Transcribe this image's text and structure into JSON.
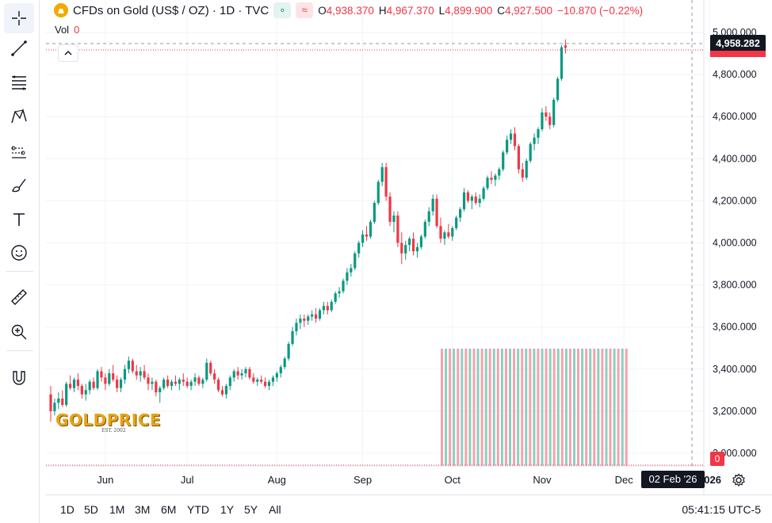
{
  "legend": {
    "title": "CFDs on Gold (US$ / OZ) · 1D · TVC",
    "market_badge": "∘",
    "wave_badge": "≈",
    "open_key": "O",
    "open": "4,938.370",
    "high_key": "H",
    "high": "4,967.370",
    "low_key": "L",
    "low": "4,899.900",
    "close_key": "C",
    "close": "4,927.500",
    "change": "−10.870 (−0.22%)"
  },
  "volume": {
    "label": "Vol",
    "value": "0"
  },
  "price_tag": "4,958.282",
  "vol_tag": "0",
  "date_tag": "02 Feb '26",
  "logo": {
    "brand": "GOLDPRICE",
    "est": "EST. 2002"
  },
  "toolbar": [
    "crosshair-icon",
    "trend-line-icon",
    "fib-icon",
    "pattern-icon",
    "prediction-icon",
    "brush-icon",
    "text-icon",
    "emoji-icon",
    "ruler-icon",
    "zoom-icon",
    "magnet-icon"
  ],
  "ranges": [
    "1D",
    "5D",
    "1M",
    "3M",
    "6M",
    "YTD",
    "1Y",
    "5Y",
    "All"
  ],
  "clock": "05:41:15 UTC-5",
  "colors": {
    "up": "#089981",
    "down": "#f23645",
    "vol_up": "#8fcdc2",
    "vol_down": "#f4a3aa"
  },
  "chart_data": {
    "type": "candlestick",
    "y_ticks": [
      "5,000.000",
      "4,800.000",
      "4,600.000",
      "4,400.000",
      "4,200.000",
      "4,000.000",
      "3,800.000",
      "3,600.000",
      "3,400.000",
      "3,200.000",
      "3,000.000"
    ],
    "y_tick_values": [
      5000,
      4800,
      4600,
      4400,
      4200,
      4000,
      3800,
      3600,
      3400,
      3200,
      3000
    ],
    "ylim": [
      2950,
      5060
    ],
    "x_ticks": [
      "Jun",
      "Jul",
      "Aug",
      "Sep",
      "Oct",
      "Nov",
      "Dec",
      "2026"
    ],
    "x_tick_index": [
      14,
      35,
      58,
      80,
      103,
      126,
      147,
      169
    ],
    "ohlc": [
      [
        3280,
        3320,
        3150,
        3200
      ],
      [
        3200,
        3260,
        3180,
        3240
      ],
      [
        3240,
        3290,
        3210,
        3260
      ],
      [
        3260,
        3300,
        3220,
        3230
      ],
      [
        3230,
        3340,
        3220,
        3330
      ],
      [
        3330,
        3370,
        3300,
        3310
      ],
      [
        3310,
        3360,
        3290,
        3350
      ],
      [
        3350,
        3380,
        3300,
        3320
      ],
      [
        3320,
        3330,
        3260,
        3280
      ],
      [
        3280,
        3330,
        3250,
        3300
      ],
      [
        3300,
        3350,
        3280,
        3340
      ],
      [
        3340,
        3360,
        3300,
        3310
      ],
      [
        3310,
        3400,
        3300,
        3390
      ],
      [
        3390,
        3410,
        3340,
        3360
      ],
      [
        3360,
        3380,
        3300,
        3330
      ],
      [
        3330,
        3400,
        3320,
        3380
      ],
      [
        3380,
        3420,
        3340,
        3350
      ],
      [
        3350,
        3370,
        3290,
        3310
      ],
      [
        3310,
        3360,
        3290,
        3350
      ],
      [
        3350,
        3420,
        3330,
        3400
      ],
      [
        3400,
        3460,
        3380,
        3440
      ],
      [
        3440,
        3450,
        3380,
        3390
      ],
      [
        3390,
        3420,
        3350,
        3370
      ],
      [
        3370,
        3410,
        3340,
        3390
      ],
      [
        3390,
        3420,
        3350,
        3360
      ],
      [
        3360,
        3380,
        3300,
        3330
      ],
      [
        3330,
        3360,
        3300,
        3340
      ],
      [
        3340,
        3350,
        3270,
        3290
      ],
      [
        3290,
        3320,
        3240,
        3310
      ],
      [
        3310,
        3360,
        3300,
        3350
      ],
      [
        3350,
        3370,
        3310,
        3320
      ],
      [
        3320,
        3350,
        3300,
        3340
      ],
      [
        3340,
        3370,
        3320,
        3330
      ],
      [
        3330,
        3360,
        3300,
        3350
      ],
      [
        3350,
        3380,
        3320,
        3340
      ],
      [
        3340,
        3360,
        3310,
        3320
      ],
      [
        3320,
        3350,
        3300,
        3340
      ],
      [
        3340,
        3380,
        3320,
        3360
      ],
      [
        3360,
        3370,
        3320,
        3330
      ],
      [
        3330,
        3360,
        3310,
        3350
      ],
      [
        3350,
        3450,
        3340,
        3430
      ],
      [
        3430,
        3440,
        3370,
        3380
      ],
      [
        3380,
        3400,
        3330,
        3350
      ],
      [
        3350,
        3360,
        3290,
        3300
      ],
      [
        3300,
        3320,
        3270,
        3280
      ],
      [
        3280,
        3330,
        3260,
        3320
      ],
      [
        3320,
        3370,
        3300,
        3360
      ],
      [
        3360,
        3400,
        3340,
        3390
      ],
      [
        3390,
        3410,
        3350,
        3370
      ],
      [
        3370,
        3400,
        3350,
        3380
      ],
      [
        3380,
        3410,
        3360,
        3400
      ],
      [
        3400,
        3410,
        3350,
        3360
      ],
      [
        3360,
        3380,
        3330,
        3340
      ],
      [
        3340,
        3360,
        3320,
        3350
      ],
      [
        3350,
        3370,
        3330,
        3340
      ],
      [
        3340,
        3360,
        3310,
        3320
      ],
      [
        3320,
        3350,
        3300,
        3340
      ],
      [
        3340,
        3370,
        3320,
        3360
      ],
      [
        3360,
        3390,
        3340,
        3380
      ],
      [
        3380,
        3420,
        3360,
        3410
      ],
      [
        3410,
        3460,
        3400,
        3450
      ],
      [
        3450,
        3530,
        3440,
        3520
      ],
      [
        3520,
        3600,
        3510,
        3580
      ],
      [
        3580,
        3640,
        3560,
        3620
      ],
      [
        3620,
        3660,
        3590,
        3640
      ],
      [
        3640,
        3660,
        3600,
        3630
      ],
      [
        3630,
        3660,
        3610,
        3650
      ],
      [
        3650,
        3680,
        3630,
        3660
      ],
      [
        3660,
        3690,
        3620,
        3640
      ],
      [
        3640,
        3690,
        3630,
        3680
      ],
      [
        3680,
        3720,
        3660,
        3700
      ],
      [
        3700,
        3720,
        3660,
        3680
      ],
      [
        3680,
        3730,
        3670,
        3720
      ],
      [
        3720,
        3770,
        3710,
        3760
      ],
      [
        3760,
        3790,
        3740,
        3770
      ],
      [
        3770,
        3830,
        3760,
        3820
      ],
      [
        3820,
        3880,
        3800,
        3860
      ],
      [
        3860,
        3900,
        3840,
        3880
      ],
      [
        3880,
        3960,
        3870,
        3950
      ],
      [
        3950,
        4010,
        3930,
        4000
      ],
      [
        4000,
        4060,
        3980,
        4040
      ],
      [
        4040,
        4080,
        4010,
        4030
      ],
      [
        4030,
        4110,
        4020,
        4100
      ],
      [
        4100,
        4200,
        4090,
        4190
      ],
      [
        4190,
        4300,
        4180,
        4290
      ],
      [
        4290,
        4380,
        4270,
        4360
      ],
      [
        4360,
        4380,
        4200,
        4220
      ],
      [
        4220,
        4240,
        4080,
        4100
      ],
      [
        4100,
        4150,
        4050,
        4130
      ],
      [
        4130,
        4150,
        3980,
        4000
      ],
      [
        4000,
        4050,
        3900,
        3950
      ],
      [
        3950,
        4010,
        3920,
        3990
      ],
      [
        3990,
        4030,
        3960,
        4020
      ],
      [
        4020,
        4050,
        3940,
        3960
      ],
      [
        3960,
        4000,
        3930,
        3980
      ],
      [
        3980,
        4040,
        3970,
        4030
      ],
      [
        4030,
        4110,
        4020,
        4100
      ],
      [
        4100,
        4170,
        4080,
        4150
      ],
      [
        4150,
        4230,
        4130,
        4210
      ],
      [
        4210,
        4230,
        4070,
        4080
      ],
      [
        4080,
        4120,
        4000,
        4020
      ],
      [
        4020,
        4060,
        3990,
        4050
      ],
      [
        4050,
        4090,
        4020,
        4030
      ],
      [
        4030,
        4080,
        4010,
        4070
      ],
      [
        4070,
        4130,
        4060,
        4120
      ],
      [
        4120,
        4170,
        4100,
        4160
      ],
      [
        4160,
        4260,
        4150,
        4240
      ],
      [
        4240,
        4250,
        4190,
        4200
      ],
      [
        4200,
        4230,
        4160,
        4220
      ],
      [
        4220,
        4240,
        4180,
        4190
      ],
      [
        4190,
        4230,
        4170,
        4210
      ],
      [
        4210,
        4270,
        4200,
        4260
      ],
      [
        4260,
        4320,
        4250,
        4310
      ],
      [
        4310,
        4340,
        4280,
        4300
      ],
      [
        4300,
        4330,
        4270,
        4320
      ],
      [
        4320,
        4360,
        4300,
        4350
      ],
      [
        4350,
        4440,
        4340,
        4430
      ],
      [
        4430,
        4510,
        4420,
        4490
      ],
      [
        4490,
        4540,
        4470,
        4520
      ],
      [
        4520,
        4550,
        4440,
        4460
      ],
      [
        4460,
        4470,
        4330,
        4350
      ],
      [
        4350,
        4380,
        4290,
        4310
      ],
      [
        4310,
        4400,
        4300,
        4390
      ],
      [
        4390,
        4480,
        4380,
        4470
      ],
      [
        4470,
        4520,
        4440,
        4500
      ],
      [
        4500,
        4550,
        4470,
        4540
      ],
      [
        4540,
        4640,
        4530,
        4620
      ],
      [
        4620,
        4650,
        4580,
        4600
      ],
      [
        4600,
        4620,
        4540,
        4560
      ],
      [
        4560,
        4690,
        4550,
        4680
      ],
      [
        4680,
        4790,
        4670,
        4780
      ],
      [
        4780,
        4940,
        4770,
        4930
      ],
      [
        4938.37,
        4967.37,
        4899.9,
        4927.5
      ]
    ]
  }
}
